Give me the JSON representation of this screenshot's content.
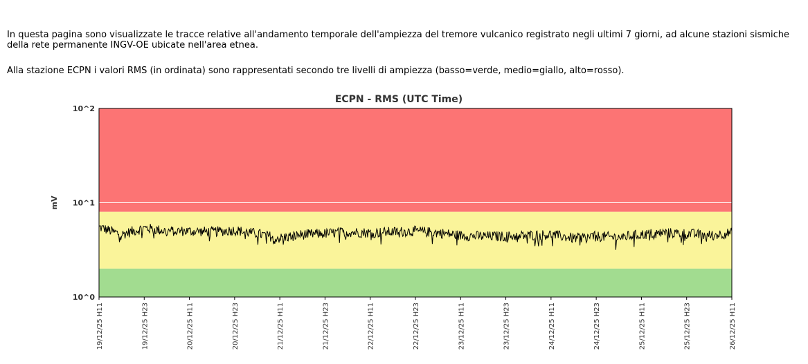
{
  "intro": {
    "paragraph1": "In questa pagina sono visualizzate le tracce relative all'andamento temporale dell'ampiezza del tremore vulcanico registrato negli ultimi 7 giorni, ad alcune stazioni sismiche della rete permanente INGV-OE ubicate nell'area etnea.",
    "paragraph2": "Alla stazione ECPN i valori RMS (in ordinata) sono rappresentati secondo tre livelli di ampiezza (basso=verde, medio=giallo, alto=rosso)."
  },
  "colors": {
    "low": "#a2dc90",
    "medium": "#faf49a",
    "high": "#fc7474",
    "line": "#000000"
  },
  "chart_data": {
    "type": "line",
    "title": "ECPN - RMS (UTC Time)",
    "ylabel": "mV",
    "yscale": "log",
    "ylim": [
      1,
      100
    ],
    "yticks": [
      "10^0",
      "10^1",
      "10^2"
    ],
    "xticks": [
      "19/12/25 H11",
      "19/12/25 H23",
      "20/12/25 H11",
      "20/12/25 H23",
      "21/12/25 H11",
      "21/12/25 H23",
      "22/12/25 H11",
      "22/12/25 H23",
      "23/12/25 H11",
      "23/12/25 H23",
      "24/12/25 H11",
      "24/12/25 H23",
      "25/12/25 H11",
      "25/12/25 H23",
      "26/12/25 H11"
    ],
    "bands": [
      {
        "level": "basso",
        "color": "verde",
        "from": 1.0,
        "to": 2.0
      },
      {
        "level": "medio",
        "color": "giallo",
        "from": 2.0,
        "to": 8.0
      },
      {
        "level": "alto",
        "color": "rosso",
        "from": 8.0,
        "to": 100.0
      }
    ],
    "x_hours_from_start": [
      0,
      6,
      12,
      18,
      24,
      30,
      36,
      42,
      48,
      54,
      60,
      66,
      72,
      78,
      84,
      90,
      96,
      102,
      108,
      114,
      120,
      126,
      132,
      138,
      144,
      150,
      156,
      162,
      168
    ],
    "rms_mV": [
      5.5,
      4.6,
      5.4,
      5.0,
      5.0,
      4.9,
      5.1,
      4.7,
      4.2,
      4.6,
      4.7,
      4.9,
      4.8,
      4.9,
      5.0,
      4.8,
      4.5,
      4.4,
      4.4,
      4.5,
      4.6,
      4.2,
      4.4,
      4.3,
      4.6,
      4.8,
      4.7,
      4.5,
      4.8
    ]
  }
}
